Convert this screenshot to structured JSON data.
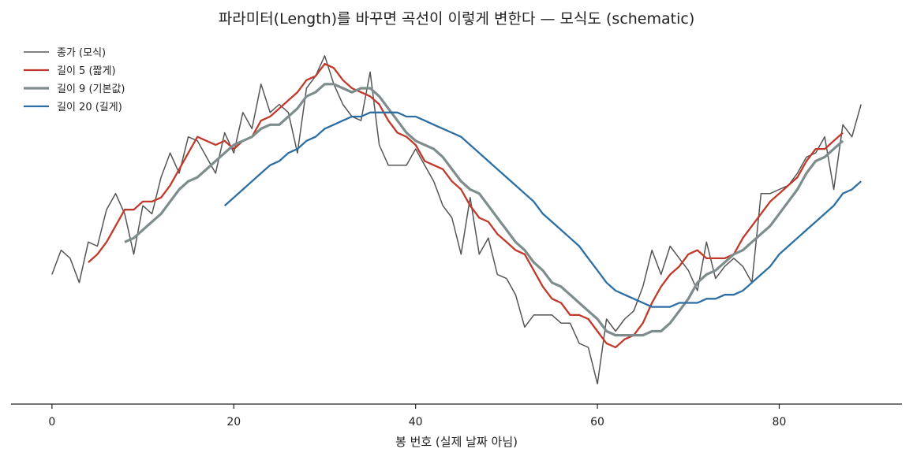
{
  "chart_data": {
    "type": "line",
    "title": "파라미터(Length)를 바꾸면 곡선이 이렇게 변한다 — 모식도 (schematic)",
    "xlabel": "봉 번호 (실제 날짜 아님)",
    "ylabel": "",
    "xlim": [
      -4.5,
      93.5
    ],
    "ylim": [
      0.08,
      1.0
    ],
    "x_ticks": [
      0,
      20,
      40,
      60,
      80
    ],
    "y_axis_visible": false,
    "grid": false,
    "legend_position": "top-left",
    "series": [
      {
        "name": "종가 (모식)",
        "color": "#555555",
        "x_start": 0,
        "values": [
          0.4,
          0.46,
          0.44,
          0.38,
          0.48,
          0.47,
          0.56,
          0.6,
          0.55,
          0.45,
          0.57,
          0.55,
          0.64,
          0.7,
          0.65,
          0.74,
          0.73,
          0.69,
          0.65,
          0.75,
          0.7,
          0.8,
          0.76,
          0.87,
          0.8,
          0.82,
          0.8,
          0.7,
          0.86,
          0.89,
          0.94,
          0.87,
          0.82,
          0.79,
          0.78,
          0.9,
          0.72,
          0.67,
          0.67,
          0.67,
          0.71,
          0.67,
          0.63,
          0.57,
          0.54,
          0.45,
          0.59,
          0.45,
          0.49,
          0.4,
          0.39,
          0.35,
          0.27,
          0.3,
          0.3,
          0.3,
          0.28,
          0.28,
          0.23,
          0.22,
          0.13,
          0.29,
          0.26,
          0.29,
          0.31,
          0.37,
          0.46,
          0.4,
          0.47,
          0.44,
          0.41,
          0.36,
          0.48,
          0.39,
          0.42,
          0.44,
          0.42,
          0.38,
          0.6,
          0.6,
          0.61,
          0.62,
          0.65,
          0.69,
          0.7,
          0.74,
          0.61,
          0.77,
          0.74,
          0.82
        ]
      },
      {
        "name": "길이 5 (짧게)",
        "color": "#c0392b",
        "x_start": 4,
        "values": [
          0.43,
          0.45,
          0.48,
          0.52,
          0.56,
          0.56,
          0.58,
          0.58,
          0.59,
          0.62,
          0.66,
          0.7,
          0.74,
          0.73,
          0.72,
          0.73,
          0.71,
          0.73,
          0.74,
          0.78,
          0.79,
          0.81,
          0.83,
          0.85,
          0.88,
          0.89,
          0.92,
          0.91,
          0.88,
          0.86,
          0.85,
          0.84,
          0.82,
          0.78,
          0.75,
          0.74,
          0.72,
          0.68,
          0.67,
          0.66,
          0.63,
          0.61,
          0.57,
          0.54,
          0.53,
          0.5,
          0.48,
          0.46,
          0.45,
          0.41,
          0.37,
          0.34,
          0.33,
          0.3,
          0.3,
          0.29,
          0.26,
          0.23,
          0.22,
          0.24,
          0.25,
          0.28,
          0.33,
          0.37,
          0.4,
          0.42,
          0.45,
          0.46,
          0.44,
          0.44,
          0.44,
          0.45,
          0.49,
          0.52,
          0.55,
          0.58,
          0.6,
          0.62,
          0.64,
          0.68,
          0.71,
          0.71,
          0.73,
          0.75
        ]
      },
      {
        "name": "길이 9 (기본값)",
        "color": "#7f8c8d",
        "x_start": 8,
        "values": [
          0.48,
          0.49,
          0.51,
          0.53,
          0.55,
          0.58,
          0.61,
          0.63,
          0.64,
          0.66,
          0.68,
          0.7,
          0.72,
          0.73,
          0.74,
          0.76,
          0.77,
          0.77,
          0.79,
          0.81,
          0.84,
          0.85,
          0.87,
          0.87,
          0.86,
          0.85,
          0.86,
          0.86,
          0.84,
          0.81,
          0.78,
          0.75,
          0.73,
          0.72,
          0.71,
          0.69,
          0.66,
          0.63,
          0.61,
          0.6,
          0.57,
          0.54,
          0.51,
          0.48,
          0.46,
          0.43,
          0.41,
          0.38,
          0.37,
          0.35,
          0.33,
          0.31,
          0.29,
          0.26,
          0.25,
          0.25,
          0.25,
          0.25,
          0.26,
          0.26,
          0.28,
          0.31,
          0.34,
          0.38,
          0.4,
          0.41,
          0.43,
          0.45,
          0.46,
          0.48,
          0.5,
          0.52,
          0.55,
          0.58,
          0.61,
          0.65,
          0.68,
          0.69,
          0.71,
          0.73
        ]
      },
      {
        "name": "길이 20 (길게)",
        "color": "#2c6ea4",
        "x_start": 19,
        "values": [
          0.57,
          0.59,
          0.61,
          0.63,
          0.65,
          0.67,
          0.68,
          0.7,
          0.71,
          0.73,
          0.74,
          0.76,
          0.77,
          0.78,
          0.79,
          0.79,
          0.8,
          0.8,
          0.8,
          0.8,
          0.79,
          0.79,
          0.78,
          0.77,
          0.76,
          0.75,
          0.74,
          0.72,
          0.7,
          0.68,
          0.66,
          0.64,
          0.62,
          0.6,
          0.58,
          0.55,
          0.53,
          0.51,
          0.49,
          0.47,
          0.44,
          0.41,
          0.38,
          0.36,
          0.35,
          0.34,
          0.33,
          0.32,
          0.32,
          0.32,
          0.33,
          0.33,
          0.33,
          0.34,
          0.34,
          0.35,
          0.35,
          0.36,
          0.38,
          0.4,
          0.42,
          0.45,
          0.47,
          0.49,
          0.51,
          0.53,
          0.55,
          0.57,
          0.6,
          0.61,
          0.63
        ]
      }
    ]
  }
}
